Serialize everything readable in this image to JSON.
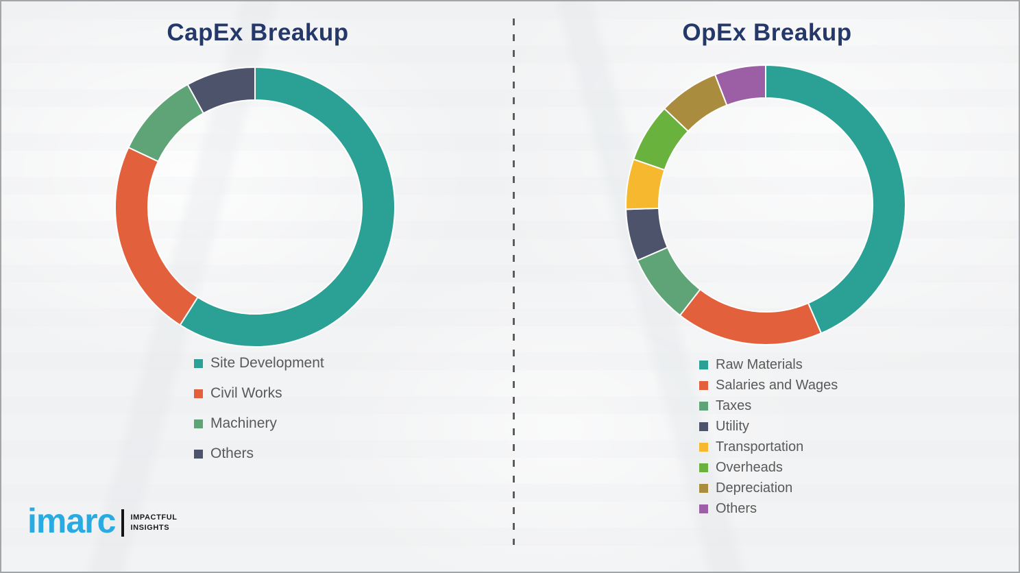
{
  "page": {
    "background_color": "#f2f3f4",
    "border_color": "#a3a6a9",
    "divider_style": "vertical-dashed",
    "legend_text_color": "#595959",
    "title_color": "#24386B"
  },
  "chart_data": [
    {
      "type": "pie",
      "subtype": "donut",
      "title": "CapEx Breakup",
      "categories": [
        "Site Development",
        "Civil Works",
        "Machinery",
        "Others"
      ],
      "values": [
        59,
        23,
        10,
        8
      ],
      "colors": [
        "#2AA194",
        "#E2603C",
        "#5FA476",
        "#4C536B"
      ],
      "start_angle_deg": 0,
      "direction": "clockwise",
      "legend_position": "bottom-left",
      "data_labels": false
    },
    {
      "type": "pie",
      "subtype": "donut",
      "title": "OpEx Breakup",
      "categories": [
        "Raw Materials",
        "Salaries and Wages",
        "Taxes",
        "Utility",
        "Transportation",
        "Overheads",
        "Depreciation",
        "Others"
      ],
      "values": [
        43.5,
        17,
        8,
        6,
        5.8,
        6.8,
        7,
        5.9
      ],
      "colors": [
        "#2AA194",
        "#E2603C",
        "#5FA476",
        "#4C536B",
        "#F5B82E",
        "#6AB23E",
        "#A98C3E",
        "#9C5FA5"
      ],
      "start_angle_deg": 0,
      "direction": "clockwise",
      "legend_position": "bottom-left",
      "data_labels": false
    }
  ],
  "logo": {
    "brand": "imarc",
    "brand_color": "#29ABE2",
    "tagline_line1": "IMPACTFUL",
    "tagline_line2": "INSIGHTS"
  }
}
